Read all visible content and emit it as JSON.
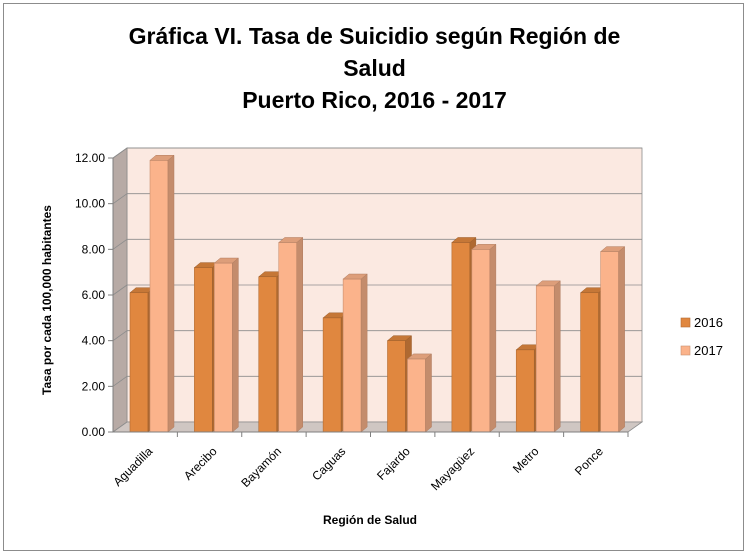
{
  "chart_data": {
    "type": "bar",
    "title_lines": [
      "Gráfica VI. Tasa de Suicidio según Región de",
      "Salud",
      "Puerto Rico, 2016 - 2017"
    ],
    "xlabel": "Región de Salud",
    "ylabel": "Tasa por cada 100,000 habitantes",
    "categories": [
      "Aguadilla",
      "Arecibo",
      "Bayamón",
      "Caguas",
      "Fajardo",
      "Mayagüez",
      "Metro",
      "Ponce"
    ],
    "series": [
      {
        "name": "2016",
        "values": [
          6.1,
          7.2,
          6.8,
          5.0,
          4.0,
          8.3,
          3.6,
          6.1
        ]
      },
      {
        "name": "2017",
        "values": [
          11.9,
          7.4,
          8.3,
          6.7,
          3.2,
          8.0,
          6.4,
          7.9
        ]
      }
    ],
    "ylim": [
      0,
      12
    ],
    "yticks": [
      "0.00",
      "2.00",
      "4.00",
      "6.00",
      "8.00",
      "10.00",
      "12.00"
    ],
    "grid": true,
    "legend_position": "right",
    "colors": {
      "s2016": "#e0873f",
      "s2017": "#fbb38b",
      "wall": "#fbe9e1",
      "side_wall": "#b7aaa5"
    }
  }
}
